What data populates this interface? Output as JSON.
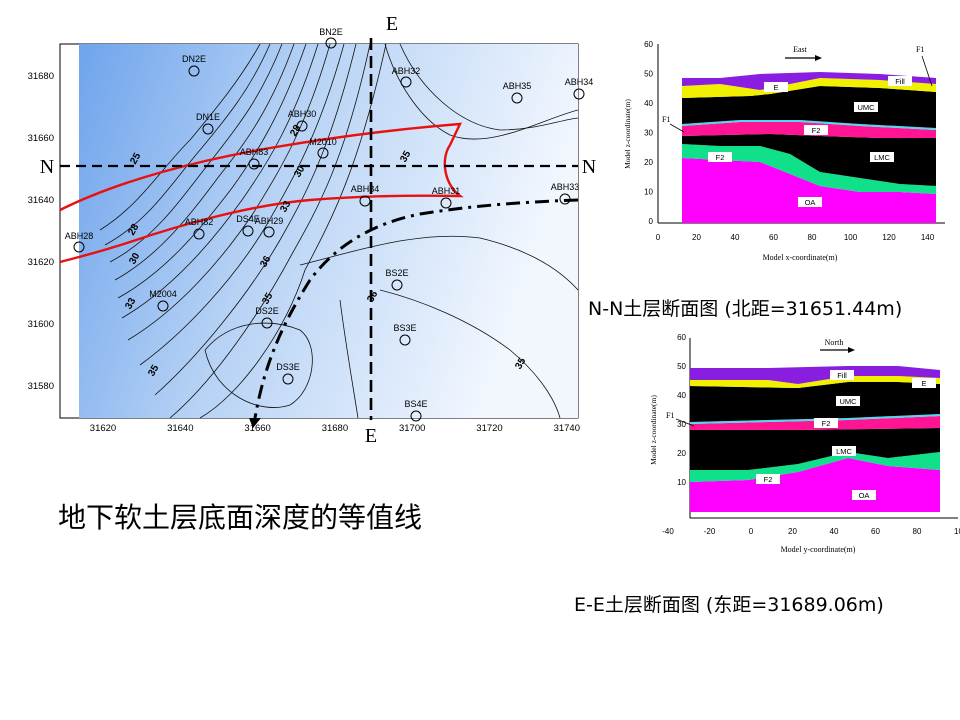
{
  "contour_map": {
    "x_ticks": [
      "31620",
      "31640",
      "31660",
      "31680",
      "31700",
      "31720",
      "31740"
    ],
    "y_ticks": [
      "31680",
      "31660",
      "31640",
      "31620",
      "31600",
      "31580"
    ],
    "contour_labels": [
      "25",
      "28",
      "30",
      "33",
      "35",
      "36",
      "28",
      "30",
      "33",
      "35",
      "36",
      "35",
      "35"
    ],
    "boreholes": [
      "BN2E",
      "DN2E",
      "ABH32",
      "ABH35",
      "ABH34",
      "DN1E",
      "ABH30",
      "M2010",
      "ABH83",
      "ABH84",
      "ABH31",
      "ABH33",
      "ABH82",
      "DS4E",
      "ABH29",
      "ABH28",
      "BS2E",
      "M2004",
      "DS2E",
      "BS3E",
      "DS3E",
      "BS4E"
    ],
    "section_e_top": "E",
    "section_e_bottom": "E",
    "section_n_left": "N",
    "section_n_right": "N",
    "title": "地下软土层底面深度的等值线"
  },
  "section_nn": {
    "caption": "N-N土层断面图 (北距=31651.44m)",
    "y_ticks": [
      "60",
      "50",
      "40",
      "30",
      "20",
      "10",
      "0"
    ],
    "x_ticks": [
      "0",
      "20",
      "40",
      "60",
      "80",
      "100",
      "120",
      "140"
    ],
    "ylabel": "Model z-coordinate(m)",
    "xlabel": "Model x-coordinate(m)",
    "direction": "East",
    "fault_top": "F1",
    "fault_left": "F1",
    "layers": [
      "Fill",
      "E",
      "UMC",
      "F2",
      "LMC",
      "F2",
      "OA"
    ]
  },
  "section_ee": {
    "caption": "E-E土层断面图 (东距=31689.06m)",
    "y_ticks": [
      "60",
      "50",
      "40",
      "30",
      "20",
      "10"
    ],
    "x_ticks": [
      "-40",
      "-20",
      "0",
      "20",
      "40",
      "60",
      "80",
      "10"
    ],
    "ylabel": "Model z-coordinate(m)",
    "xlabel": "Model y-coordinate(m)",
    "direction": "North",
    "fault_left": "F1",
    "layers": [
      "Fill",
      "E",
      "UMC",
      "F2",
      "LMC",
      "F2",
      "OA"
    ]
  },
  "colors": {
    "fill": "#8a1ee0",
    "e_layer": "#f0f000",
    "umc": "#000000",
    "f2": "#ff1493",
    "lmc": "#000000",
    "f2_green": "#11e08a",
    "oa": "#ff00ff",
    "map_deep": "#7fb0ef",
    "map_light": "#eef4fd",
    "red_line": "#e81010"
  }
}
